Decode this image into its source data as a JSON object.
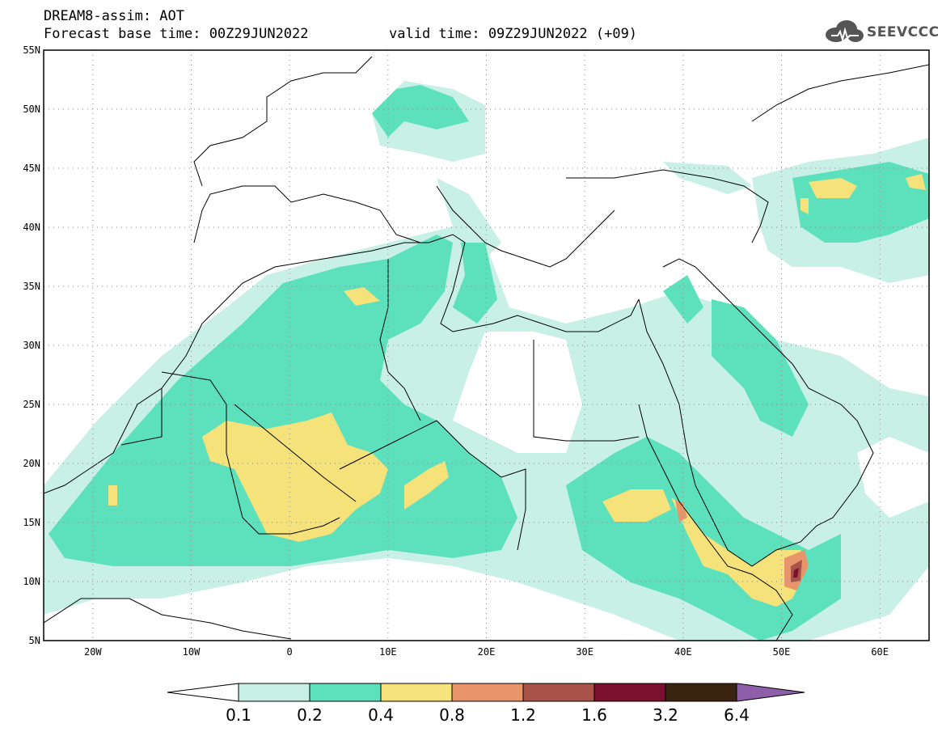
{
  "header": {
    "title_line1": "DREAM8-assim: AOT",
    "title_line2": "Forecast base time: 00Z29JUN2022",
    "valid_time": "valid time: 09Z29JUN2022 (+09)"
  },
  "logo": {
    "text": "SEEVCCC",
    "icon": "cloud-icon"
  },
  "map": {
    "lon_labels": [
      "20W",
      "10W",
      "0",
      "10E",
      "20E",
      "30E",
      "40E",
      "50E",
      "60E"
    ],
    "lat_labels": [
      "55N",
      "50N",
      "45N",
      "40N",
      "35N",
      "30N",
      "25N",
      "20N",
      "15N",
      "10N",
      "5N"
    ],
    "lon_range": [
      -25,
      65
    ],
    "lat_range": [
      5,
      55
    ],
    "grid": "dotted"
  },
  "colorbar": {
    "levels": [
      "0.1",
      "0.2",
      "0.4",
      "0.8",
      "1.2",
      "1.6",
      "3.2",
      "6.4"
    ],
    "colors": [
      "#ffffff",
      "#c8f0e6",
      "#5ce1bc",
      "#f5e27a",
      "#e8956b",
      "#a8534a",
      "#7a0f2e",
      "#3a2410",
      "#8c5fa8"
    ]
  }
}
